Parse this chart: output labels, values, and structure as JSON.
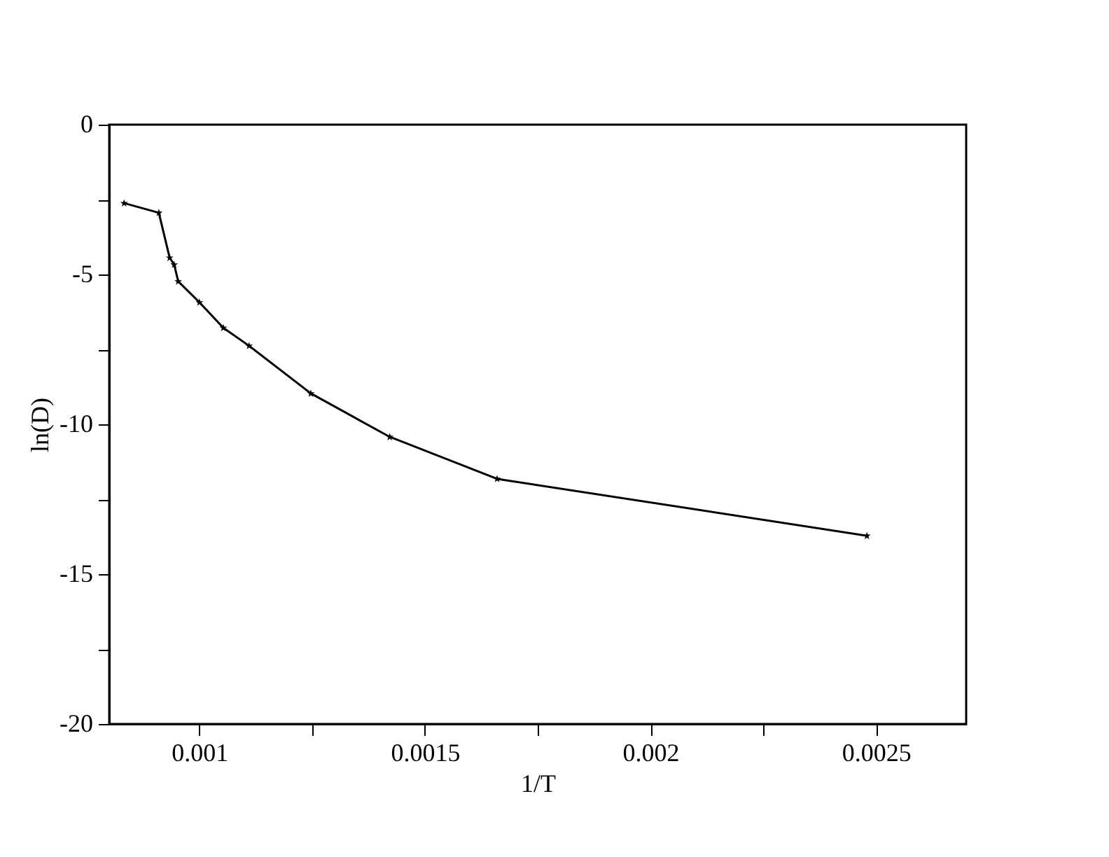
{
  "chart_data": {
    "type": "line",
    "xlabel": "1/T",
    "ylabel": "ln(D)",
    "x": [
      0.000833,
      0.00091,
      0.000934,
      0.000944,
      0.000953,
      0.001,
      0.001053,
      0.00111,
      0.001247,
      0.001422,
      0.00166,
      0.00248
    ],
    "series": [
      {
        "color": "#000000",
        "values": [
          -2.62,
          -2.94,
          -4.44,
          -4.67,
          -5.23,
          -5.93,
          -6.78,
          -7.38,
          -8.97,
          -10.42,
          -11.82,
          -13.72
        ]
      }
    ],
    "xlim": [
      0.0008,
      0.0027
    ],
    "ylim": [
      -20,
      0
    ],
    "xticks": [
      0.001,
      {
        "value": 0.00125,
        "label": null
      },
      0.0015,
      {
        "value": 0.00175,
        "label": null
      },
      0.002,
      {
        "value": 0.00225,
        "label": null
      },
      0.0025
    ],
    "yticks": [
      -20,
      {
        "value": -17.5,
        "label": null
      },
      -15,
      {
        "value": -12.5,
        "label": null
      },
      -10,
      {
        "value": -7.5,
        "label": null
      },
      -5,
      {
        "value": -2.5,
        "label": null
      },
      0
    ],
    "marker": "star",
    "line_style": "solid",
    "grid": false
  }
}
